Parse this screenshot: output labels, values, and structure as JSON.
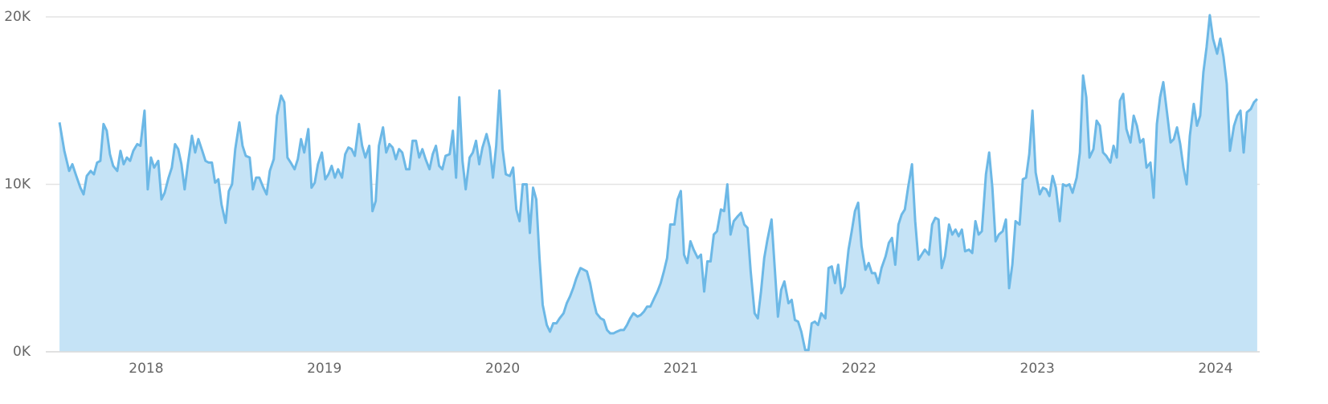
{
  "chart_data": {
    "type": "area",
    "xlim": [
      2017.437,
      2024.248
    ],
    "xticks": [
      2018,
      2019,
      2020,
      2021,
      2022,
      2023,
      2024
    ],
    "ylim": [
      0,
      20000
    ],
    "yticks": [
      {
        "value": 0,
        "label": "0K"
      },
      {
        "value": 10000,
        "label": "10K"
      },
      {
        "value": 20000,
        "label": "20K"
      }
    ],
    "grid": true,
    "series": [
      {
        "color": "#6cb8e6",
        "fill": "#c5e3f6",
        "x": [
          2017.514,
          2017.541,
          2017.568,
          2017.586,
          2017.608,
          2017.631,
          2017.649,
          2017.667,
          2017.689,
          2017.707,
          2017.725,
          2017.743,
          2017.761,
          2017.779,
          2017.797,
          2017.815,
          2017.838,
          2017.856,
          2017.874,
          2017.892,
          2017.91,
          2017.928,
          2017.95,
          2017.968,
          2017.991,
          2018.009,
          2018.027,
          2018.045,
          2018.068,
          2018.086,
          2018.104,
          2018.126,
          2018.144,
          2018.162,
          2018.18,
          2018.198,
          2018.216,
          2018.234,
          2018.257,
          2018.275,
          2018.293,
          2018.315,
          2018.333,
          2018.351,
          2018.369,
          2018.387,
          2018.405,
          2018.423,
          2018.446,
          2018.464,
          2018.482,
          2018.5,
          2018.523,
          2018.541,
          2018.559,
          2018.581,
          2018.599,
          2018.617,
          2018.635,
          2018.658,
          2018.676,
          2018.694,
          2018.716,
          2018.734,
          2018.757,
          2018.775,
          2018.793,
          2018.811,
          2018.833,
          2018.851,
          2018.869,
          2018.887,
          2018.91,
          2018.928,
          2018.946,
          2018.964,
          2018.986,
          2019.005,
          2019.023,
          2019.041,
          2019.059,
          2019.077,
          2019.099,
          2019.117,
          2019.135,
          2019.153,
          2019.171,
          2019.194,
          2019.212,
          2019.23,
          2019.252,
          2019.27,
          2019.288,
          2019.306,
          2019.329,
          2019.347,
          2019.365,
          2019.383,
          2019.401,
          2019.419,
          2019.437,
          2019.459,
          2019.477,
          2019.495,
          2019.514,
          2019.532,
          2019.55,
          2019.568,
          2019.59,
          2019.608,
          2019.626,
          2019.644,
          2019.662,
          2019.68,
          2019.703,
          2019.721,
          2019.739,
          2019.757,
          2019.775,
          2019.793,
          2019.815,
          2019.833,
          2019.851,
          2019.869,
          2019.887,
          2019.91,
          2019.928,
          2019.946,
          2019.964,
          2019.982,
          2020.0,
          2020.018,
          2020.041,
          2020.059,
          2020.077,
          2020.095,
          2020.113,
          2020.135,
          2020.153,
          2020.171,
          2020.189,
          2020.207,
          2020.225,
          2020.248,
          2020.266,
          2020.284,
          2020.302,
          2020.32,
          2020.342,
          2020.36,
          2020.378,
          2020.396,
          2020.414,
          2020.437,
          2020.455,
          2020.473,
          2020.491,
          2020.509,
          2020.527,
          2020.55,
          2020.568,
          2020.586,
          2020.604,
          2020.622,
          2020.64,
          2020.662,
          2020.68,
          2020.698,
          2020.716,
          2020.734,
          2020.757,
          2020.775,
          2020.793,
          2020.811,
          2020.829,
          2020.851,
          2020.869,
          2020.887,
          2020.905,
          2020.923,
          2020.941,
          2020.964,
          2020.982,
          2021.0,
          2021.018,
          2021.036,
          2021.054,
          2021.072,
          2021.095,
          2021.113,
          2021.131,
          2021.149,
          2021.167,
          2021.185,
          2021.203,
          2021.225,
          2021.243,
          2021.261,
          2021.279,
          2021.297,
          2021.32,
          2021.338,
          2021.356,
          2021.374,
          2021.392,
          2021.414,
          2021.432,
          2021.45,
          2021.468,
          2021.486,
          2021.509,
          2021.527,
          2021.545,
          2021.563,
          2021.581,
          2021.604,
          2021.622,
          2021.64,
          2021.658,
          2021.676,
          2021.698,
          2021.716,
          2021.734,
          2021.752,
          2021.77,
          2021.788,
          2021.811,
          2021.829,
          2021.847,
          2021.865,
          2021.883,
          2021.901,
          2021.919,
          2021.941,
          2021.959,
          2021.977,
          2021.995,
          2022.014,
          2022.036,
          2022.054,
          2022.072,
          2022.09,
          2022.108,
          2022.126,
          2022.149,
          2022.167,
          2022.185,
          2022.203,
          2022.221,
          2022.239,
          2022.257,
          2022.275,
          2022.297,
          2022.315,
          2022.333,
          2022.351,
          2022.369,
          2022.392,
          2022.41,
          2022.428,
          2022.446,
          2022.464,
          2022.482,
          2022.505,
          2022.523,
          2022.541,
          2022.559,
          2022.577,
          2022.595,
          2022.617,
          2022.635,
          2022.653,
          2022.671,
          2022.689,
          2022.712,
          2022.73,
          2022.748,
          2022.766,
          2022.784,
          2022.806,
          2022.824,
          2022.842,
          2022.86,
          2022.878,
          2022.901,
          2022.919,
          2022.937,
          2022.955,
          2022.973,
          2022.991,
          2023.014,
          2023.032,
          2023.05,
          2023.068,
          2023.086,
          2023.104,
          2023.126,
          2023.144,
          2023.162,
          2023.18,
          2023.198,
          2023.221,
          2023.239,
          2023.257,
          2023.275,
          2023.293,
          2023.315,
          2023.333,
          2023.351,
          2023.369,
          2023.387,
          2023.41,
          2023.428,
          2023.446,
          2023.464,
          2023.482,
          2023.5,
          2023.523,
          2023.541,
          2023.559,
          2023.577,
          2023.595,
          2023.613,
          2023.635,
          2023.653,
          2023.671,
          2023.689,
          2023.707,
          2023.73,
          2023.748,
          2023.766,
          2023.784,
          2023.802,
          2023.82,
          2023.838,
          2023.856,
          2023.878,
          2023.896,
          2023.914,
          2023.932,
          2023.95,
          2023.968,
          2023.986,
          2024.009,
          2024.027,
          2024.045,
          2024.063,
          2024.081,
          2024.104,
          2024.122,
          2024.14,
          2024.158,
          2024.176,
          2024.198,
          2024.216,
          2024.234
        ],
        "values": [
          13700,
          12000,
          10800,
          11200,
          10500,
          9800,
          9400,
          10500,
          10800,
          10600,
          11300,
          11400,
          13600,
          13200,
          11800,
          11100,
          10800,
          12000,
          11200,
          11600,
          11400,
          12000,
          12400,
          12300,
          14400,
          9700,
          11600,
          11000,
          11400,
          9100,
          9500,
          10400,
          11000,
          12400,
          12100,
          11200,
          9700,
          11200,
          12900,
          11900,
          12700,
          12000,
          11400,
          11300,
          11300,
          10100,
          10300,
          8800,
          7700,
          9600,
          10000,
          12100,
          13700,
          12300,
          11700,
          11600,
          9700,
          10400,
          10400,
          9800,
          9400,
          10800,
          11500,
          14100,
          15300,
          14900,
          11600,
          11300,
          10900,
          11500,
          12700,
          11900,
          13300,
          9800,
          10100,
          11200,
          11900,
          10300,
          10600,
          11100,
          10400,
          10900,
          10400,
          11800,
          12200,
          12100,
          11700,
          13600,
          12300,
          11600,
          12300,
          8400,
          9000,
          12300,
          13400,
          11900,
          12400,
          12200,
          11500,
          12100,
          11900,
          10900,
          10900,
          12600,
          12600,
          11600,
          12100,
          11500,
          10900,
          11800,
          12300,
          11100,
          10900,
          11700,
          11800,
          13200,
          10400,
          15200,
          11400,
          9700,
          11600,
          11900,
          12600,
          11200,
          12200,
          13000,
          12200,
          10400,
          12300,
          15600,
          12100,
          10600,
          10500,
          11000,
          8500,
          7800,
          10000,
          10000,
          7100,
          9800,
          9100,
          5600,
          2800,
          1600,
          1200,
          1700,
          1700,
          2000,
          2300,
          2900,
          3300,
          3800,
          4400,
          5000,
          4900,
          4800,
          4100,
          3100,
          2300,
          2000,
          1900,
          1300,
          1100,
          1100,
          1200,
          1300,
          1300,
          1600,
          2000,
          2300,
          2100,
          2200,
          2400,
          2700,
          2700,
          3200,
          3600,
          4100,
          4800,
          5600,
          7600,
          7600,
          9100,
          9600,
          5800,
          5300,
          6600,
          6100,
          5600,
          5800,
          3600,
          5400,
          5400,
          7000,
          7200,
          8500,
          8400,
          10000,
          7000,
          7800,
          8100,
          8300,
          7600,
          7400,
          4800,
          2300,
          2000,
          3600,
          5600,
          6700,
          7900,
          5000,
          2100,
          3700,
          4200,
          2900,
          3100,
          1900,
          1800,
          1200,
          100,
          100,
          1700,
          1800,
          1600,
          2300,
          2000,
          5000,
          5100,
          4100,
          5200,
          3500,
          3900,
          6100,
          7200,
          8400,
          8900,
          6300,
          4900,
          5300,
          4700,
          4700,
          4100,
          5000,
          5700,
          6500,
          6800,
          5200,
          7600,
          8200,
          8500,
          9800,
          11200,
          7800,
          5500,
          5800,
          6100,
          5800,
          7600,
          8000,
          7900,
          5000,
          5700,
          7600,
          7000,
          7300,
          6900,
          7300,
          6000,
          6100,
          5900,
          7800,
          7000,
          7200,
          10600,
          11900,
          9800,
          6600,
          7000,
          7200,
          7900,
          3800,
          5200,
          7800,
          7600,
          10300,
          10400,
          11800,
          14400,
          10700,
          9400,
          9800,
          9700,
          9300,
          10500,
          9800,
          7800,
          10000,
          9900,
          10000,
          9500,
          10400,
          11900,
          16500,
          15200,
          11600,
          12100,
          13800,
          13500,
          11900,
          11700,
          11300,
          12300,
          11600,
          15000,
          15400,
          13300,
          12500,
          14100,
          13500,
          12500,
          12700,
          11000,
          11300,
          9200,
          13600,
          15200,
          16100,
          14100,
          12500,
          12700,
          13400,
          12400,
          11000,
          10000,
          12900,
          14800,
          13500,
          14100,
          16700,
          18200,
          20100,
          18700,
          17800,
          18700,
          17600,
          16000,
          12000,
          13500,
          14100,
          14400,
          11900,
          14300,
          14500,
          14900,
          15100
        ]
      }
    ]
  }
}
